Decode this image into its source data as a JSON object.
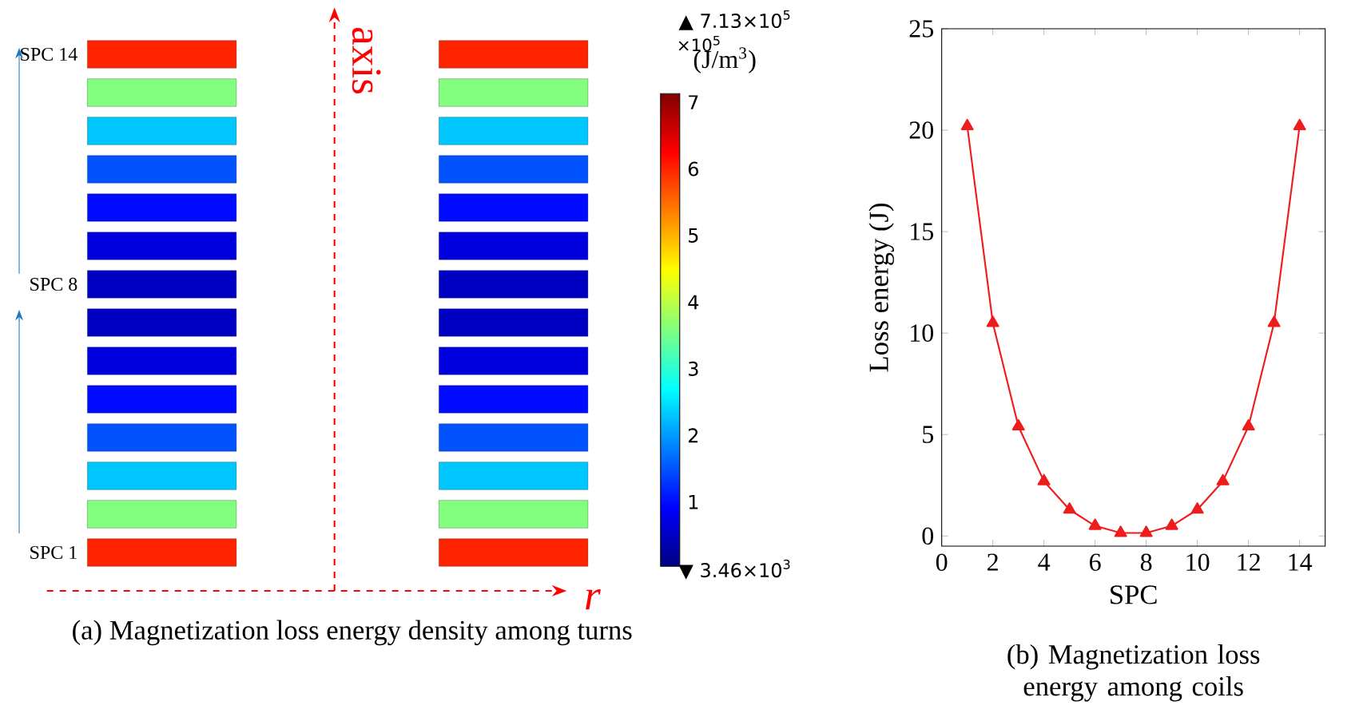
{
  "chart_data": [
    {
      "type": "heatmap",
      "title": "(a) Magnetization loss energy density among turns",
      "clabel": "(J/m$^{3}$)",
      "categories": [
        null,
        null
      ],
      "y_categories": [
        "SPC 14",
        null,
        null,
        null,
        null,
        null,
        "SPC 8",
        null,
        null,
        null,
        null,
        null,
        null,
        "SPC 1"
      ],
      "cells": [
        [
          6.0,
          6.0
        ],
        [
          3.6,
          3.6
        ],
        [
          2.3,
          2.3
        ],
        [
          1.5,
          1.5
        ],
        [
          1.0,
          1.0
        ],
        [
          0.7,
          0.7
        ],
        [
          0.5,
          0.5
        ],
        [
          0.5,
          0.5
        ],
        [
          0.7,
          0.7
        ],
        [
          1.0,
          1.0
        ],
        [
          1.5,
          1.5
        ],
        [
          2.3,
          2.3
        ],
        [
          3.6,
          3.6
        ],
        [
          6.0,
          6.0
        ]
      ],
      "clim": [
        0.0346,
        7.13
      ],
      "cticks": [
        1,
        2,
        3,
        4,
        5,
        6,
        7
      ],
      "annotations": [
        "▲ 7.13×10$^{5}$",
        "×10$^{5}$",
        "▼ 3.46×10$^{3}$",
        "axis",
        "r"
      ]
    },
    {
      "type": "line",
      "title": "(b) Magnetization loss energy among coils",
      "xlabel": "SPC",
      "ylabel": "Loss energy (J)",
      "x": [
        1,
        2,
        3,
        4,
        5,
        6,
        7,
        8,
        9,
        10,
        11,
        12,
        13,
        14
      ],
      "series": [
        {
          "color": "#ee1c1c",
          "values": [
            20.2,
            10.5,
            5.4,
            2.7,
            1.3,
            0.5,
            0.15,
            0.15,
            0.5,
            1.3,
            2.7,
            5.4,
            10.5,
            20.2
          ]
        }
      ],
      "xlim": [
        0,
        15
      ],
      "ylim": [
        -0.5,
        25
      ],
      "xticks": [
        0,
        2,
        4,
        6,
        8,
        10,
        12,
        14
      ],
      "yticks": [
        0,
        5,
        10,
        15,
        20,
        25
      ],
      "marker": "triangle",
      "line_style": "solid",
      "grid": false
    }
  ]
}
